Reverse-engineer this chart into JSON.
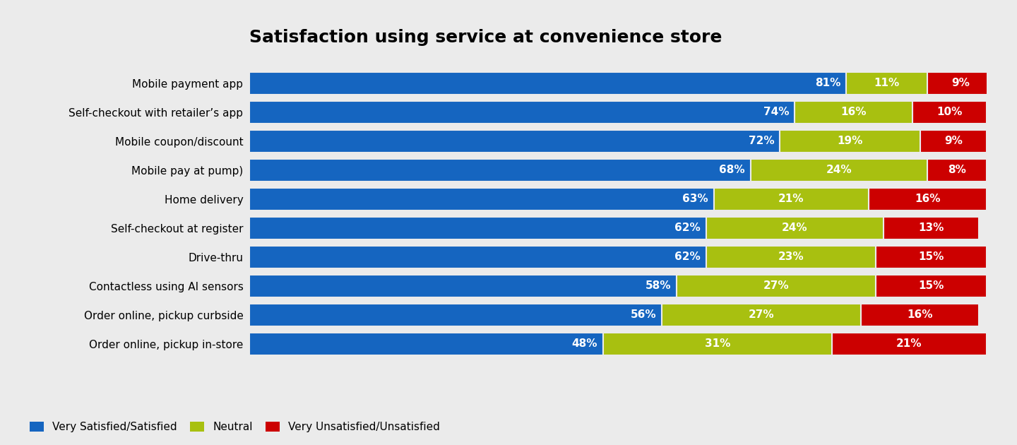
{
  "title": "Satisfaction using service at convenience store",
  "categories": [
    "Mobile payment app",
    "Self-checkout with retailer’s app",
    "Mobile coupon/discount",
    "Mobile pay at pump)",
    "Home delivery",
    "Self-checkout at register",
    "Drive-thru",
    "Contactless using AI sensors",
    "Order online, pickup curbside",
    "Order online, pickup in-store"
  ],
  "satisfied": [
    81,
    74,
    72,
    68,
    63,
    62,
    62,
    58,
    56,
    48
  ],
  "neutral": [
    11,
    16,
    19,
    24,
    21,
    24,
    23,
    27,
    27,
    31
  ],
  "unsatisfied": [
    9,
    10,
    9,
    8,
    16,
    13,
    15,
    15,
    16,
    21
  ],
  "color_satisfied": "#1565C0",
  "color_neutral": "#A8C010",
  "color_unsatisfied": "#CC0000",
  "background_color": "#EBEBEB",
  "title_fontsize": 18,
  "label_fontsize": 11,
  "bar_label_fontsize": 11,
  "legend_fontsize": 11,
  "bar_height": 0.78
}
